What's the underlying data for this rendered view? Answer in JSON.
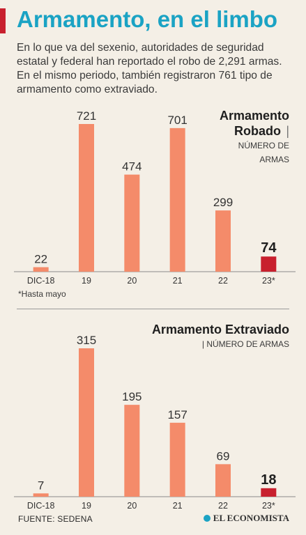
{
  "header": {
    "title": "Armamento, en el limbo",
    "subtitle": "En lo que va del sexenio, autoridades de seguridad estatal y federal han reportado el robo de 2,291 armas. En el mismo periodo, también registraron 761 tipo de armamento como extraviado."
  },
  "chart_data": [
    {
      "type": "bar",
      "title_line1": "Armamento",
      "title_line2": "Robado",
      "unit_line1": "NÚMERO DE",
      "unit_line2": "ARMAS",
      "categories": [
        "DIC-18",
        "19",
        "20",
        "21",
        "22",
        "23*"
      ],
      "values": [
        22,
        721,
        474,
        701,
        299,
        74
      ],
      "ylim": [
        0,
        800
      ],
      "bar_color": "#f48b6a",
      "highlight_color": "#c8202e",
      "highlight_index": 5,
      "grid": false
    },
    {
      "type": "bar",
      "title_line1": "Armamento Extraviado",
      "unit_line1": "NÚMERO DE ARMAS",
      "categories": [
        "DIC-18",
        "19",
        "20",
        "21",
        "22",
        "23*"
      ],
      "values": [
        7,
        315,
        195,
        157,
        69,
        18
      ],
      "ylim": [
        0,
        350
      ],
      "bar_color": "#f48b6a",
      "highlight_color": "#c8202e",
      "highlight_index": 5,
      "grid": false
    }
  ],
  "notes": {
    "footnote": "*Hasta mayo",
    "source": "FUENTE: SEDENA",
    "brand": "EL ECONOMISTA"
  },
  "colors": {
    "title": "#1ba3c4",
    "accent": "#c8202e",
    "background": "#f4efe6"
  }
}
